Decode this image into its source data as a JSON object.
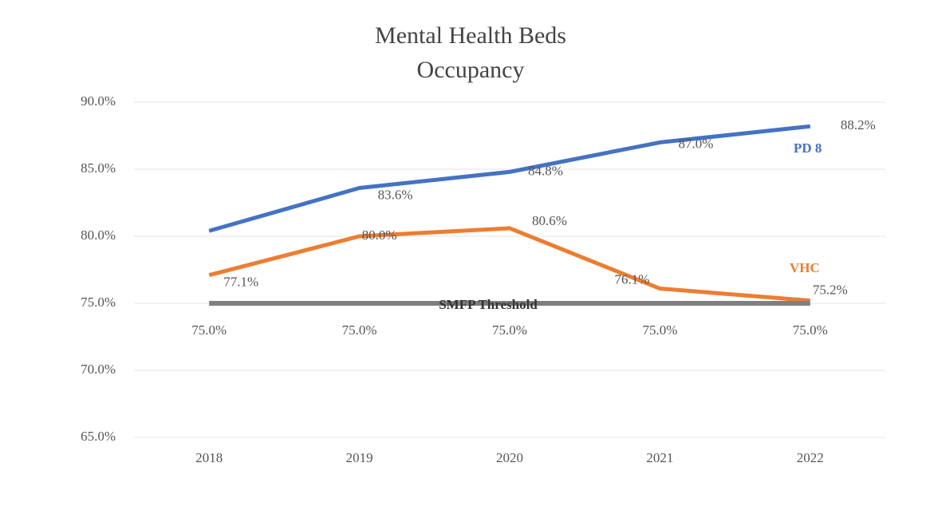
{
  "chart_data": {
    "type": "line",
    "title": [
      "Mental Health Beds",
      "Occupancy"
    ],
    "categories": [
      "2018",
      "2019",
      "2020",
      "2021",
      "2022"
    ],
    "ylim": [
      65,
      90
    ],
    "yticks": [
      {
        "value": 65,
        "label": "65.0%"
      },
      {
        "value": 70,
        "label": "70.0%"
      },
      {
        "value": 75,
        "label": "75.0%"
      },
      {
        "value": 80,
        "label": "80.0%"
      },
      {
        "value": 85,
        "label": "85.0%"
      },
      {
        "value": 90,
        "label": "90.0%"
      }
    ],
    "grid": true,
    "series": [
      {
        "name": "PD 8",
        "color": "#4472c4",
        "values": [
          80.4,
          83.6,
          84.8,
          87.0,
          88.2
        ],
        "value_labels": [
          null,
          "83.6%",
          "84.8%",
          "87.0%",
          "88.2%"
        ]
      },
      {
        "name": "VHC",
        "color": "#ed7d31",
        "values": [
          77.1,
          80.0,
          80.6,
          76.1,
          75.2
        ],
        "value_labels": [
          "77.1%",
          "80.0%",
          "80.6%",
          "76.1%",
          "75.2%"
        ]
      },
      {
        "name": "SMFP Threshold",
        "color": "#7f7f7f",
        "values": [
          75.0,
          75.0,
          75.0,
          75.0,
          75.0
        ],
        "value_labels": [
          "75.0%",
          "75.0%",
          "75.0%",
          "75.0%",
          "75.0%"
        ]
      }
    ]
  }
}
